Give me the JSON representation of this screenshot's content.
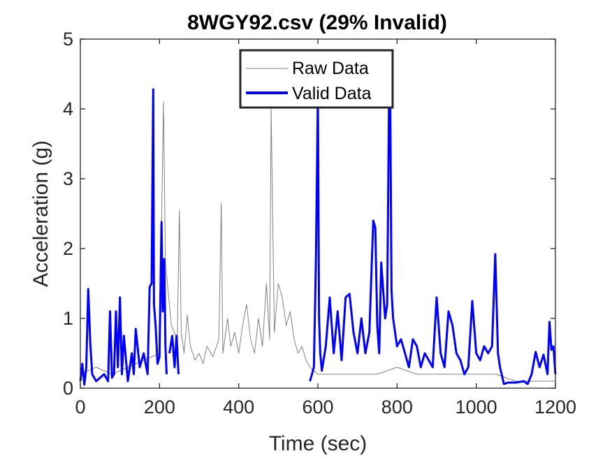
{
  "chart_data": {
    "type": "line",
    "title": "8WGY92.csv (29% Invalid)",
    "xlabel": "Time (sec)",
    "ylabel": "Acceleration (g)",
    "xlim": [
      0,
      1200
    ],
    "ylim": [
      0,
      5
    ],
    "xticks": [
      "0",
      "200",
      "400",
      "600",
      "800",
      "1000",
      "1200"
    ],
    "yticks": [
      "0",
      "1",
      "2",
      "3",
      "4",
      "5"
    ],
    "grid": false,
    "legend": "top-center",
    "series": [
      {
        "name": "Raw Data",
        "color": "#808080",
        "x": [
          0,
          40,
          80,
          120,
          160,
          200,
          210,
          215,
          230,
          245,
          250,
          255,
          262,
          270,
          278,
          290,
          300,
          310,
          320,
          335,
          350,
          356,
          360,
          372,
          380,
          390,
          400,
          410,
          420,
          430,
          440,
          450,
          460,
          470,
          478,
          482,
          490,
          500,
          510,
          520,
          530,
          540,
          550,
          560,
          570,
          580,
          600,
          650,
          700,
          750,
          800,
          850,
          900,
          950,
          1000,
          1050,
          1100,
          1150,
          1200
        ],
        "y": [
          0.2,
          0.3,
          0.2,
          0.3,
          0.4,
          0.5,
          4.1,
          1.8,
          0.9,
          0.7,
          2.55,
          0.8,
          0.5,
          1.05,
          0.6,
          0.4,
          0.5,
          0.35,
          0.6,
          0.45,
          0.7,
          2.65,
          0.5,
          1.0,
          0.6,
          0.8,
          0.5,
          0.9,
          1.2,
          0.7,
          0.5,
          1.0,
          0.6,
          1.5,
          0.7,
          4.0,
          0.8,
          1.5,
          1.3,
          0.9,
          1.1,
          0.7,
          0.5,
          0.6,
          0.4,
          0.3,
          0.2,
          0.2,
          0.2,
          0.2,
          0.3,
          0.2,
          0.2,
          0.2,
          0.2,
          0.2,
          0.1,
          0.1,
          0.1
        ]
      },
      {
        "name": "Valid Data",
        "color": "#0000ff",
        "segments": [
          {
            "x": [
              0,
              5,
              10,
              15,
              20,
              25,
              30,
              40,
              50,
              60,
              70,
              75,
              80,
              85,
              90,
              95,
              100,
              105,
              110,
              120,
              130,
              135,
              140,
              150,
              160,
              170,
              175,
              180,
              184,
              186,
              190,
              195,
              200,
              205,
              208,
              212,
              215,
              218
            ],
            "y": [
              0.1,
              0.35,
              0.05,
              0.3,
              1.42,
              0.65,
              0.2,
              0.1,
              0.15,
              0.2,
              0.1,
              1.1,
              0.15,
              0.2,
              1.1,
              0.3,
              1.3,
              0.2,
              0.75,
              0.1,
              0.5,
              0.2,
              0.85,
              0.3,
              0.5,
              0.2,
              1.45,
              1.5,
              4.28,
              1.2,
              0.9,
              0.35,
              0.45,
              2.38,
              1.1,
              1.85,
              0.6,
              0.2
            ]
          },
          {
            "x": [
              225,
              232,
              238,
              243,
              248
            ],
            "y": [
              0.5,
              0.75,
              0.3,
              0.75,
              0.2
            ]
          },
          {
            "x": [
              580,
              590,
              595,
              600,
              603,
              606,
              610,
              620,
              630,
              640,
              650,
              660,
              670,
              680,
              690,
              700,
              710,
              720,
              730,
              740,
              745,
              750,
              755,
              760,
              770,
              775,
              780,
              783,
              786,
              790,
              800,
              810,
              820,
              830,
              840,
              850,
              860,
              870,
              880,
              890,
              900,
              910,
              920,
              930,
              940,
              950,
              960,
              970,
              980,
              990,
              1000,
              1010,
              1020,
              1030,
              1040,
              1048,
              1055,
              1060,
              1070,
              1080,
              1100,
              1120,
              1130,
              1140,
              1150,
              1160,
              1170,
              1180,
              1185,
              1190,
              1195,
              1200
            ],
            "y": [
              0.1,
              0.3,
              1.83,
              4.2,
              1.0,
              0.5,
              0.25,
              0.6,
              1.3,
              0.5,
              1.1,
              0.4,
              1.3,
              1.35,
              0.8,
              0.5,
              1.0,
              0.5,
              0.8,
              2.4,
              2.3,
              0.9,
              0.5,
              1.8,
              1.0,
              1.2,
              4.3,
              4.0,
              1.4,
              1.0,
              0.6,
              0.7,
              0.5,
              0.3,
              0.7,
              0.6,
              0.3,
              0.5,
              0.4,
              0.3,
              1.3,
              0.5,
              0.3,
              1.1,
              0.9,
              0.5,
              0.4,
              0.2,
              0.3,
              1.25,
              0.5,
              0.4,
              0.6,
              0.5,
              0.6,
              1.92,
              0.5,
              0.3,
              0.06,
              0.08,
              0.08,
              0.1,
              0.06,
              0.2,
              0.52,
              0.3,
              0.48,
              0.2,
              0.95,
              0.55,
              0.6,
              0.2
            ]
          }
        ]
      }
    ]
  }
}
